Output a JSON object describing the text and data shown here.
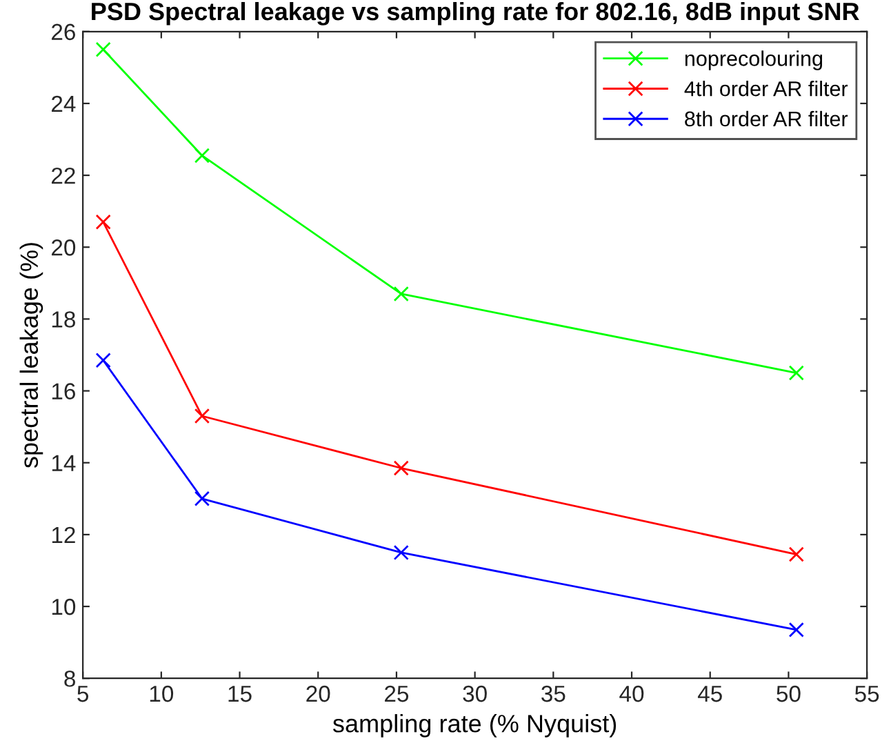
{
  "chart_data": {
    "type": "line",
    "title": "PSD Spectral leakage vs sampling rate for 802.16, 8dB input SNR",
    "xlabel": "sampling rate (% Nyquist)",
    "ylabel": "spectral leakage (%)",
    "x": [
      6.3,
      12.6,
      25.3,
      50.5
    ],
    "series": [
      {
        "name": "noprecolouring",
        "color": "#00ff00",
        "values": [
          25.5,
          22.55,
          18.7,
          16.5
        ]
      },
      {
        "name": "4th order AR filter",
        "color": "#ff0000",
        "values": [
          20.7,
          15.3,
          13.85,
          11.45
        ]
      },
      {
        "name": "8th order AR filter",
        "color": "#0000ff",
        "values": [
          16.85,
          13.0,
          11.5,
          9.35
        ]
      }
    ],
    "xlim": [
      5,
      55
    ],
    "xticks": [
      5,
      10,
      15,
      20,
      25,
      30,
      35,
      40,
      45,
      50,
      55
    ],
    "ylim": [
      8,
      26
    ],
    "yticks": [
      8,
      10,
      12,
      14,
      16,
      18,
      20,
      22,
      24,
      26
    ],
    "grid": false,
    "legend": "top right",
    "marker": "cross",
    "line_style": "solid"
  }
}
